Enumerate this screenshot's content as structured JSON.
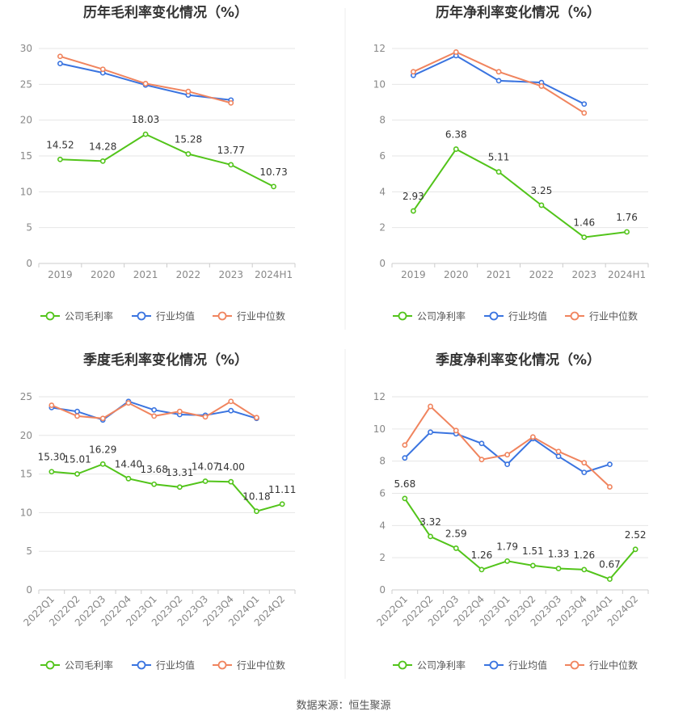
{
  "source_text": "数据来源：恒生聚源",
  "colors": {
    "company": "#52c41a",
    "industry_avg": "#3a74e0",
    "industry_median": "#f0845e",
    "grid": "#e6e6e6",
    "axis_text": "#888888",
    "title_text": "#333333"
  },
  "chart_data": [
    {
      "type": "line",
      "title": "历年毛利率变化情况（%）",
      "categories": [
        "2019",
        "2020",
        "2021",
        "2022",
        "2023",
        "2024H1"
      ],
      "ylim": [
        0,
        30
      ],
      "yticks": [
        0,
        5,
        10,
        15,
        20,
        25,
        30
      ],
      "grid": true,
      "legend_position": "bottom",
      "series": [
        {
          "name": "公司毛利率",
          "color": "#52c41a",
          "labels": true,
          "values": [
            14.52,
            14.28,
            18.03,
            15.28,
            13.77,
            10.73
          ],
          "label_text": [
            "14.52",
            "14.28",
            "18.03",
            "15.28",
            "13.77",
            "10.73"
          ]
        },
        {
          "name": "行业均值",
          "color": "#3a74e0",
          "values": [
            27.9,
            26.6,
            24.9,
            23.5,
            22.8,
            null
          ]
        },
        {
          "name": "行业中位数",
          "color": "#f0845e",
          "values": [
            28.9,
            27.1,
            25.1,
            24.0,
            22.4,
            null
          ]
        }
      ]
    },
    {
      "type": "line",
      "title": "历年净利率变化情况（%）",
      "categories": [
        "2019",
        "2020",
        "2021",
        "2022",
        "2023",
        "2024H1"
      ],
      "ylim": [
        0,
        12
      ],
      "yticks": [
        0,
        2,
        4,
        6,
        8,
        10,
        12
      ],
      "grid": true,
      "legend_position": "bottom",
      "series": [
        {
          "name": "公司净利率",
          "color": "#52c41a",
          "labels": true,
          "values": [
            2.93,
            6.38,
            5.11,
            3.25,
            1.46,
            1.76
          ],
          "label_text": [
            "2.93",
            "6.38",
            "5.11",
            "3.25",
            "1.46",
            "1.76"
          ]
        },
        {
          "name": "行业均值",
          "color": "#3a74e0",
          "values": [
            10.5,
            11.6,
            10.2,
            10.1,
            8.9,
            null
          ]
        },
        {
          "name": "行业中位数",
          "color": "#f0845e",
          "values": [
            10.7,
            11.8,
            10.7,
            9.9,
            8.4,
            null
          ]
        }
      ]
    },
    {
      "type": "line",
      "title": "季度毛利率变化情况（%）",
      "categories": [
        "2022Q1",
        "2022Q2",
        "2022Q3",
        "2022Q4",
        "2023Q1",
        "2023Q2",
        "2023Q3",
        "2023Q4",
        "2024Q1",
        "2024Q2"
      ],
      "ylim": [
        0,
        25
      ],
      "yticks": [
        0,
        5,
        10,
        15,
        20,
        25
      ],
      "grid": true,
      "legend_position": "bottom",
      "series": [
        {
          "name": "公司毛利率",
          "color": "#52c41a",
          "labels": true,
          "values": [
            15.3,
            15.01,
            16.29,
            14.4,
            13.68,
            13.31,
            14.07,
            14.0,
            10.18,
            11.11
          ],
          "label_text": [
            "15.30",
            "15.01",
            "16.29",
            "14.40",
            "13.68",
            "13.31",
            "14.07",
            "14.00",
            "10.18",
            "11.11"
          ]
        },
        {
          "name": "行业均值",
          "color": "#3a74e0",
          "values": [
            23.6,
            23.1,
            22.0,
            24.4,
            23.3,
            22.7,
            22.6,
            23.2,
            22.2,
            null
          ]
        },
        {
          "name": "行业中位数",
          "color": "#f0845e",
          "values": [
            23.9,
            22.5,
            22.2,
            24.2,
            22.5,
            23.1,
            22.4,
            24.4,
            22.3,
            null
          ]
        }
      ]
    },
    {
      "type": "line",
      "title": "季度净利率变化情况（%）",
      "categories": [
        "2022Q1",
        "2022Q2",
        "2022Q3",
        "2022Q4",
        "2023Q1",
        "2023Q2",
        "2023Q3",
        "2023Q4",
        "2024Q1",
        "2024Q2"
      ],
      "ylim": [
        0,
        12
      ],
      "yticks": [
        0,
        2,
        4,
        6,
        8,
        10,
        12
      ],
      "grid": true,
      "legend_position": "bottom",
      "series": [
        {
          "name": "公司净利率",
          "color": "#52c41a",
          "labels": true,
          "values": [
            5.68,
            3.32,
            2.59,
            1.26,
            1.79,
            1.51,
            1.33,
            1.26,
            0.67,
            2.52
          ],
          "label_text": [
            "5.68",
            "3.32",
            "2.59",
            "1.26",
            "1.79",
            "1.51",
            "1.33",
            "1.26",
            "0.67",
            "2.52"
          ]
        },
        {
          "name": "行业均值",
          "color": "#3a74e0",
          "values": [
            8.2,
            9.8,
            9.7,
            9.1,
            7.8,
            9.4,
            8.3,
            7.3,
            7.8,
            null
          ]
        },
        {
          "name": "行业中位数",
          "color": "#f0845e",
          "values": [
            9.0,
            11.4,
            9.9,
            8.1,
            8.4,
            9.5,
            8.6,
            7.9,
            6.4,
            null
          ]
        }
      ]
    }
  ]
}
